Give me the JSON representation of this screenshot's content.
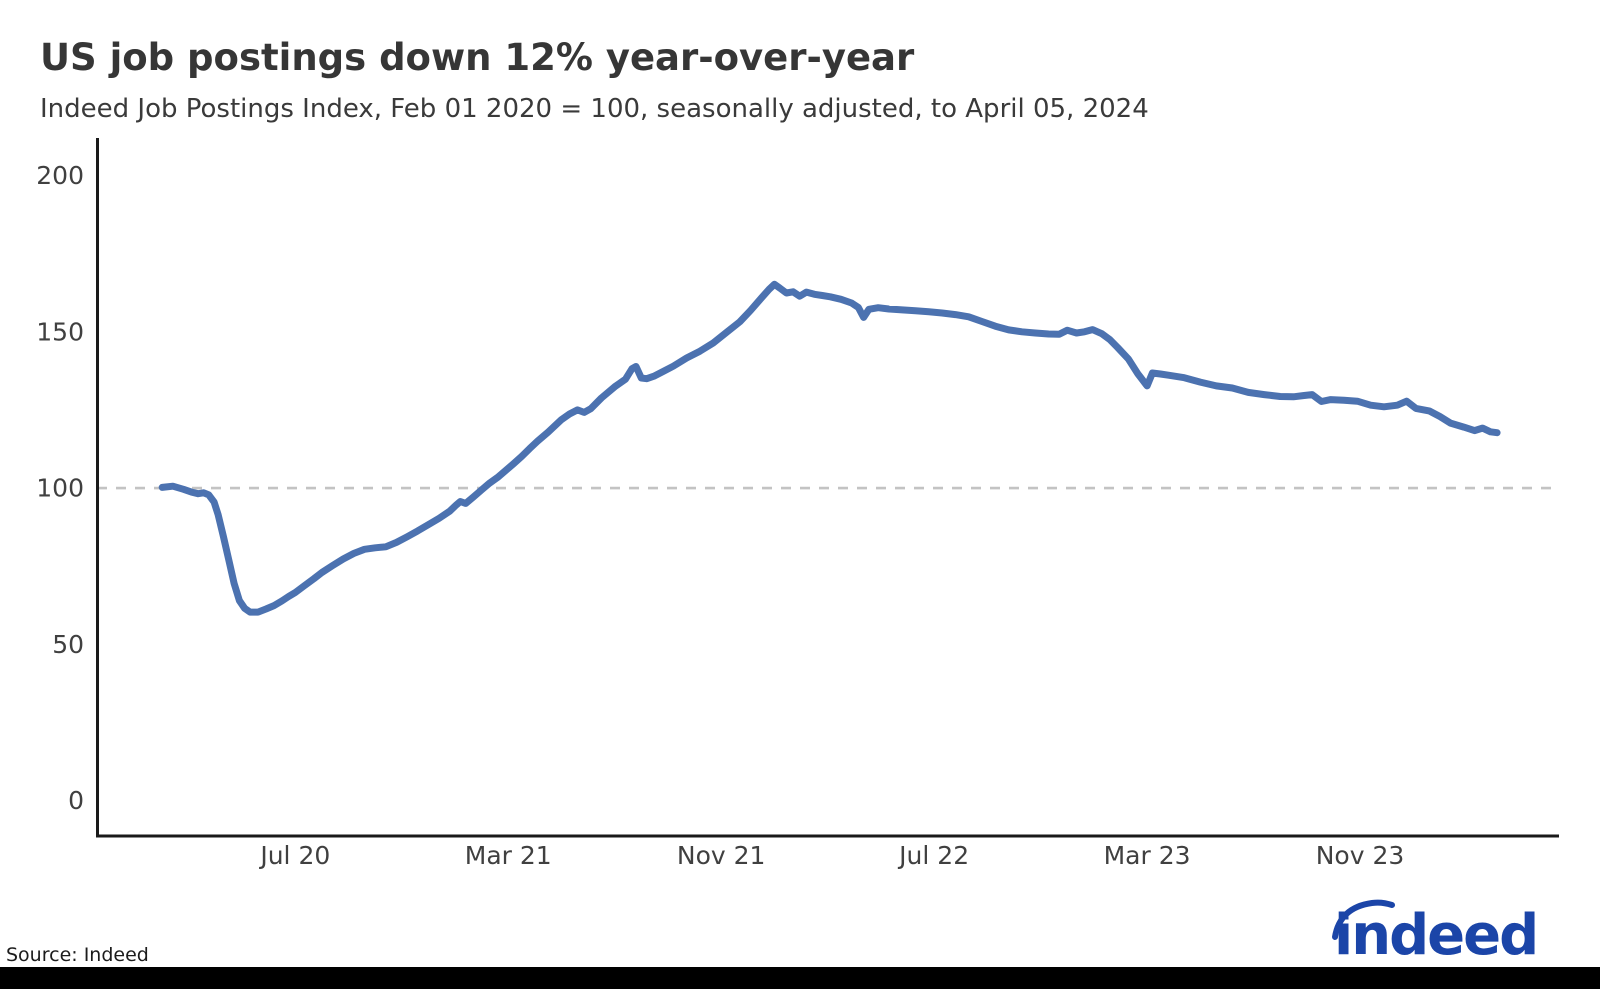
{
  "header": {
    "title": "US job postings down 12% year-over-year",
    "subtitle": "Indeed Job Postings Index, Feb 01 2020 = 100, seasonally adjusted, to April 05, 2024"
  },
  "footer": {
    "source_label": "Source: Indeed",
    "logo_text": "indeed",
    "logo_color": "#1b45a8"
  },
  "chart_data": {
    "type": "line",
    "title": "US job postings down 12% year-over-year",
    "subtitle": "Indeed Job Postings Index, Feb 01 2020 = 100, seasonally adjusted, to April 05, 2024",
    "index_base_label": "Feb 01 2020 = 100",
    "grid": "off",
    "legend": "none",
    "x_axis": {
      "tick_labels": [
        "Jul 20",
        "Mar 21",
        "Nov 21",
        "Jul 22",
        "Mar 23",
        "Nov 23"
      ],
      "tick_months_after_feb2020": [
        5,
        13,
        21,
        29,
        37,
        45
      ],
      "months_range": [
        -2.45,
        52.25
      ],
      "start_date": "Feb 01 2020",
      "end_date": "April 05 2024"
    },
    "y_axis": {
      "ticks": [
        0,
        50,
        100,
        150,
        200
      ],
      "range": [
        -11,
        212
      ]
    },
    "reference_line": {
      "value": 100,
      "style": "dashed",
      "color": "#c3c3c3"
    },
    "series": [
      {
        "name": "Indeed Job Postings Index (US, seasonally adjusted)",
        "color": "#4c72b0",
        "stroke_width": 7,
        "points_format": [
          "months_after_feb2020",
          "index_value"
        ],
        "points": [
          [
            0,
            100.2
          ],
          [
            0.4,
            100.6
          ],
          [
            0.8,
            99.6
          ],
          [
            1.1,
            98.7
          ],
          [
            1.35,
            98.2
          ],
          [
            1.55,
            98.5
          ],
          [
            1.75,
            97.8
          ],
          [
            1.95,
            95.5
          ],
          [
            2.1,
            91.5
          ],
          [
            2.3,
            84.5
          ],
          [
            2.5,
            77
          ],
          [
            2.7,
            69.5
          ],
          [
            2.9,
            64
          ],
          [
            3.1,
            61.5
          ],
          [
            3.3,
            60.3
          ],
          [
            3.6,
            60.3
          ],
          [
            3.9,
            61.3
          ],
          [
            4.2,
            62.4
          ],
          [
            4.5,
            63.9
          ],
          [
            4.75,
            65.3
          ],
          [
            5,
            66.6
          ],
          [
            5.3,
            68.5
          ],
          [
            5.7,
            71
          ],
          [
            6,
            73
          ],
          [
            6.4,
            75.2
          ],
          [
            6.8,
            77.3
          ],
          [
            7.2,
            79.1
          ],
          [
            7.6,
            80.4
          ],
          [
            8,
            80.9
          ],
          [
            8.4,
            81.2
          ],
          [
            8.8,
            82.6
          ],
          [
            9.2,
            84.4
          ],
          [
            9.6,
            86.3
          ],
          [
            10,
            88.3
          ],
          [
            10.4,
            90.3
          ],
          [
            10.8,
            92.6
          ],
          [
            11.05,
            94.6
          ],
          [
            11.2,
            95.7
          ],
          [
            11.4,
            95.1
          ],
          [
            11.7,
            97.2
          ],
          [
            12,
            99.4
          ],
          [
            12.3,
            101.6
          ],
          [
            12.6,
            103.4
          ],
          [
            12.9,
            105.6
          ],
          [
            13.2,
            107.8
          ],
          [
            13.5,
            110.1
          ],
          [
            13.8,
            112.6
          ],
          [
            14.1,
            115
          ],
          [
            14.5,
            117.9
          ],
          [
            15,
            121.9
          ],
          [
            15.3,
            123.7
          ],
          [
            15.6,
            125
          ],
          [
            15.85,
            124.2
          ],
          [
            16.1,
            125.4
          ],
          [
            16.5,
            128.8
          ],
          [
            17,
            132.4
          ],
          [
            17.4,
            134.8
          ],
          [
            17.65,
            138.2
          ],
          [
            17.8,
            138.9
          ],
          [
            18,
            135.2
          ],
          [
            18.2,
            135
          ],
          [
            18.5,
            135.9
          ],
          [
            18.8,
            137.2
          ],
          [
            19.2,
            139
          ],
          [
            19.7,
            141.6
          ],
          [
            20.2,
            143.8
          ],
          [
            20.7,
            146.4
          ],
          [
            21.2,
            149.8
          ],
          [
            21.7,
            153.2
          ],
          [
            22.1,
            156.8
          ],
          [
            22.5,
            160.7
          ],
          [
            22.8,
            163.6
          ],
          [
            23,
            165.2
          ],
          [
            23.2,
            164
          ],
          [
            23.45,
            162.4
          ],
          [
            23.7,
            162.8
          ],
          [
            23.95,
            161.4
          ],
          [
            24.2,
            162.7
          ],
          [
            24.5,
            162
          ],
          [
            24.8,
            161.6
          ],
          [
            25.1,
            161.2
          ],
          [
            25.5,
            160.4
          ],
          [
            25.9,
            159.2
          ],
          [
            26.15,
            157.8
          ],
          [
            26.35,
            154.6
          ],
          [
            26.55,
            157.2
          ],
          [
            26.9,
            157.7
          ],
          [
            27.3,
            157.3
          ],
          [
            27.8,
            157
          ],
          [
            28.3,
            156.7
          ],
          [
            28.8,
            156.4
          ],
          [
            29.3,
            156
          ],
          [
            29.8,
            155.5
          ],
          [
            30.3,
            154.8
          ],
          [
            30.8,
            153.3
          ],
          [
            31.3,
            151.8
          ],
          [
            31.8,
            150.6
          ],
          [
            32.3,
            150
          ],
          [
            32.8,
            149.6
          ],
          [
            33.3,
            149.3
          ],
          [
            33.7,
            149.2
          ],
          [
            34,
            150.5
          ],
          [
            34.35,
            149.6
          ],
          [
            34.65,
            150
          ],
          [
            34.95,
            150.7
          ],
          [
            35.3,
            149.4
          ],
          [
            35.6,
            147.5
          ],
          [
            35.9,
            144.9
          ],
          [
            36.3,
            141.3
          ],
          [
            36.65,
            136.6
          ],
          [
            37,
            132.7
          ],
          [
            37.2,
            136.8
          ],
          [
            37.5,
            136.5
          ],
          [
            37.8,
            136.1
          ],
          [
            38.4,
            135.3
          ],
          [
            39,
            133.9
          ],
          [
            39.6,
            132.7
          ],
          [
            40.2,
            132
          ],
          [
            40.8,
            130.6
          ],
          [
            41.4,
            129.9
          ],
          [
            42,
            129.3
          ],
          [
            42.5,
            129.2
          ],
          [
            42.9,
            129.6
          ],
          [
            43.2,
            129.9
          ],
          [
            43.55,
            127.7
          ],
          [
            43.9,
            128.3
          ],
          [
            44.4,
            128.1
          ],
          [
            44.9,
            127.8
          ],
          [
            45.4,
            126.5
          ],
          [
            45.9,
            126
          ],
          [
            46.4,
            126.5
          ],
          [
            46.75,
            127.8
          ],
          [
            47.1,
            125.5
          ],
          [
            47.6,
            124.7
          ],
          [
            48,
            122.9
          ],
          [
            48.4,
            120.8
          ],
          [
            48.9,
            119.5
          ],
          [
            49.3,
            118.4
          ],
          [
            49.6,
            119.2
          ],
          [
            49.9,
            118
          ],
          [
            50.15,
            117.7
          ]
        ]
      }
    ]
  }
}
